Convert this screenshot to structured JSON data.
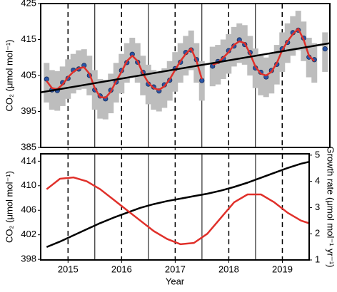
{
  "chart_data": [
    {
      "type": "scatter",
      "ylabel": "CO₂ (μmol mol⁻¹)",
      "x": [
        2014.6,
        2014.7,
        2014.8,
        2014.9,
        2015.0,
        2015.1,
        2015.2,
        2015.3,
        2015.4,
        2015.5,
        2015.6,
        2015.7,
        2015.8,
        2015.9,
        2016.0,
        2016.1,
        2016.2,
        2016.3,
        2016.4,
        2016.5,
        2016.6,
        2016.7,
        2016.8,
        2016.9,
        2017.0,
        2017.1,
        2017.2,
        2017.3,
        2017.4,
        2017.5,
        2017.6,
        2017.7,
        2017.8,
        2017.9,
        2018.0,
        2018.1,
        2018.2,
        2018.3,
        2018.4,
        2018.5,
        2018.6,
        2018.7,
        2018.8,
        2018.9,
        2019.0,
        2019.1,
        2019.2,
        2019.3,
        2019.4,
        2019.5,
        2019.6,
        2019.7,
        2019.8
      ],
      "series": [
        {
          "type": "range",
          "color": "#bdbdbd",
          "low": [
            397.5,
            395.5,
            395.2,
            396.5,
            398.5,
            400,
            401,
            401.3,
            399.5,
            395.5,
            393,
            392.8,
            394.5,
            397.5,
            400,
            403,
            404.5,
            403,
            399.5,
            397,
            395.5,
            395,
            396,
            398,
            400.5,
            403,
            405,
            406.5,
            403,
            398,
            null,
            402,
            402.5,
            404,
            405.5,
            407.5,
            408.5,
            408,
            405,
            401.5,
            399.5,
            399,
            400,
            402.5,
            406,
            408.5,
            410.5,
            412,
            409,
            404.5,
            403,
            null,
            406
          ],
          "high": [
            408.5,
            406.5,
            406.2,
            407.5,
            409.5,
            411,
            412,
            412.3,
            410.5,
            406.5,
            404,
            403.8,
            405.5,
            408.5,
            411,
            414,
            415.5,
            414,
            410.5,
            408,
            406.5,
            406,
            407,
            409,
            411.5,
            414,
            416,
            417.5,
            414,
            409,
            null,
            413,
            413.5,
            415,
            416.5,
            418.5,
            419.5,
            419,
            416,
            412.5,
            410.5,
            410,
            411,
            413.5,
            417,
            419.5,
            421.5,
            423,
            420,
            415.5,
            414,
            null,
            417
          ]
        },
        {
          "type": "points",
          "color": "#2a55a5",
          "values": [
            404,
            401,
            400.8,
            403,
            404.2,
            406.5,
            406.8,
            407.8,
            405,
            401,
            399.3,
            398.5,
            400.9,
            403.2,
            406.4,
            408.6,
            410.9,
            408.7,
            405.9,
            402.6,
            401.8,
            400.7,
            402.4,
            403.7,
            406.9,
            408.7,
            411.4,
            412.1,
            409.4,
            403.6,
            null,
            407.6,
            408.9,
            409.7,
            411.9,
            413.2,
            414.9,
            413.6,
            411.4,
            407.1,
            405.9,
            404.6,
            406.4,
            408.1,
            412.4,
            414.2,
            416.9,
            417.6,
            415.4,
            410.1,
            409.4,
            null,
            412.4
          ]
        },
        {
          "type": "line",
          "color": "#e0302a",
          "values": [
            403.5,
            401.5,
            401.2,
            402.5,
            404.5,
            406,
            407,
            407.3,
            405.5,
            401.5,
            399,
            398.8,
            400.5,
            403.5,
            406,
            409,
            410.5,
            409,
            405.5,
            403,
            401.5,
            401,
            402,
            404,
            406.5,
            409,
            411,
            412.5,
            409,
            404,
            null,
            408,
            408.5,
            410,
            411.5,
            413.5,
            414.5,
            414,
            411,
            407.5,
            405.5,
            405,
            406,
            408.5,
            412,
            414.5,
            416.5,
            418,
            415,
            410.5,
            409,
            null,
            412
          ]
        },
        {
          "type": "line",
          "color": "#000000",
          "x": [
            2014.49,
            2019.89
          ],
          "values": [
            400.3,
            414
          ]
        }
      ],
      "xlim": [
        2014.49,
        2019.89
      ],
      "xticks": [
        2015,
        2016,
        2017,
        2018,
        2019
      ],
      "vlines_solid": [
        2015.5,
        2016.5,
        2017.5,
        2018.5
      ],
      "ylim": [
        385,
        425
      ],
      "yticks": [
        385,
        395,
        405,
        415,
        425
      ]
    },
    {
      "type": "line",
      "xlabel": "Year",
      "ylabel": "CO₂ (μmol mol⁻¹)",
      "y2label": "Growth rate (μmol mol⁻¹ yr⁻¹)",
      "x": [
        2014.6,
        2014.85,
        2015.1,
        2015.35,
        2015.6,
        2015.85,
        2016.1,
        2016.35,
        2016.6,
        2016.85,
        2017.1,
        2017.35,
        2017.6,
        2017.85,
        2018.1,
        2018.35,
        2018.6,
        2018.85,
        2019.1,
        2019.35,
        2019.5
      ],
      "series": [
        {
          "color": "#000000",
          "values": [
            400.0,
            400.9,
            401.9,
            402.9,
            403.9,
            404.8,
            405.6,
            406.4,
            407.0,
            407.5,
            407.9,
            408.3,
            408.7,
            409.2,
            409.8,
            410.5,
            411.3,
            412.1,
            412.9,
            413.6,
            413.9
          ]
        },
        {
          "color": "#e0302a",
          "axis": "y2",
          "values": [
            3.7,
            4.1,
            4.15,
            4.0,
            3.7,
            3.3,
            2.9,
            2.5,
            2.1,
            1.8,
            1.6,
            1.65,
            2.0,
            2.6,
            3.2,
            3.5,
            3.5,
            3.2,
            2.8,
            2.5,
            2.4
          ]
        }
      ],
      "xlim": [
        2014.49,
        2019.5
      ],
      "xticks": [
        2015,
        2016,
        2017,
        2018,
        2019
      ],
      "vlines_solid": [
        2015.5,
        2016.5,
        2017.5,
        2018.5
      ],
      "ylim": [
        397.9,
        415.2
      ],
      "yticks": [
        398,
        402,
        406,
        410,
        414
      ],
      "y2lim": [
        1,
        5.05
      ],
      "y2ticks": [
        1,
        2,
        3,
        4,
        5
      ]
    }
  ]
}
